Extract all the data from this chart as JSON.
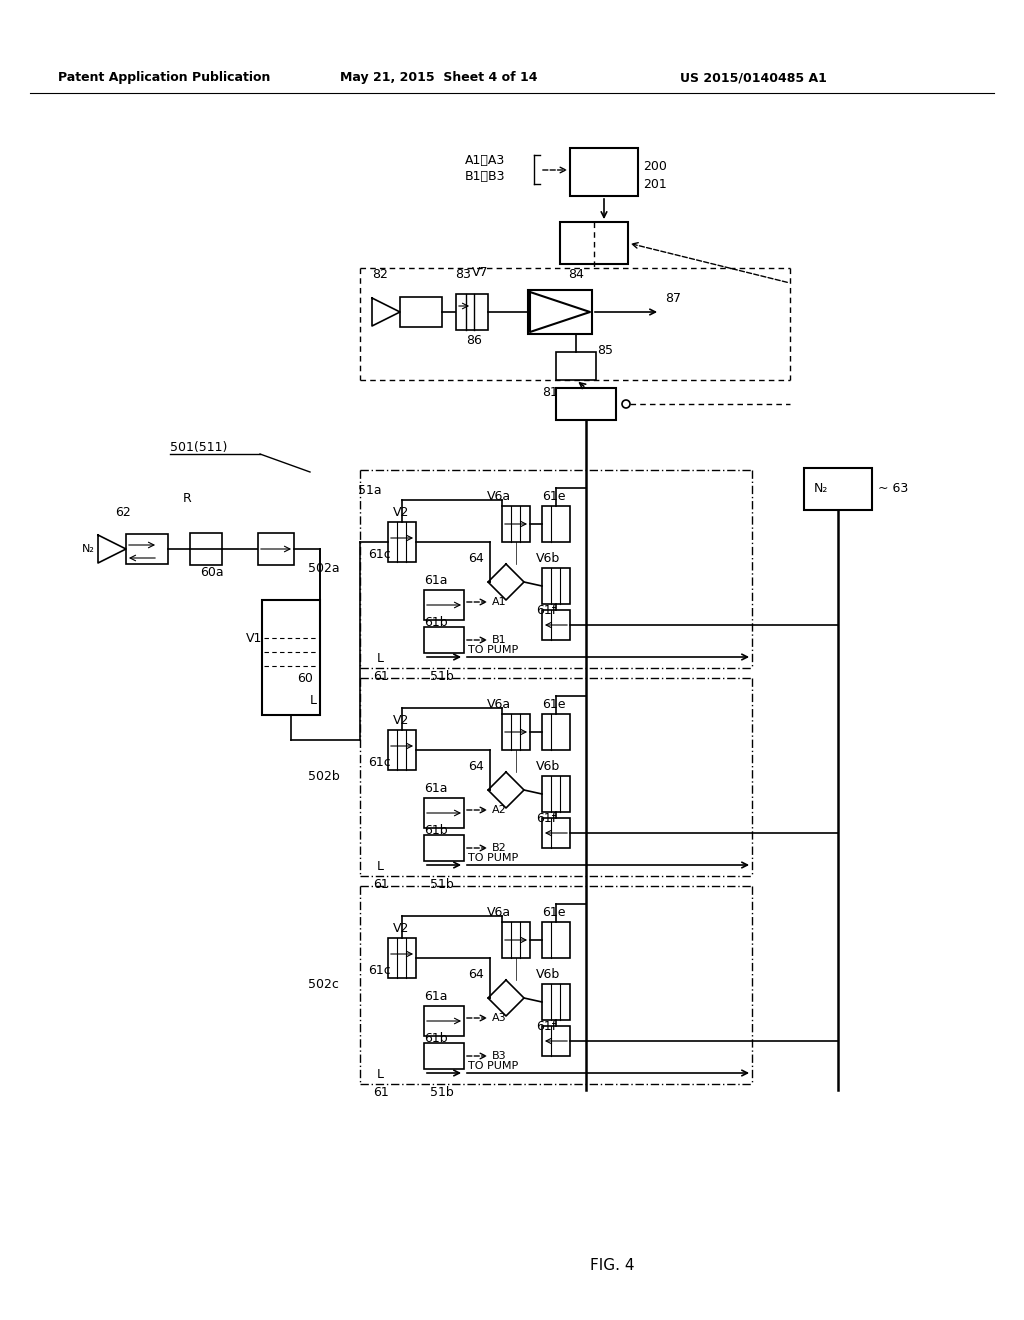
{
  "title_left": "Patent Application Publication",
  "title_mid": "May 21, 2015  Sheet 4 of 14",
  "title_right": "US 2015/0140485 A1",
  "fig_label": "FIG. 4",
  "bg_color": "#ffffff",
  "line_color": "#000000"
}
